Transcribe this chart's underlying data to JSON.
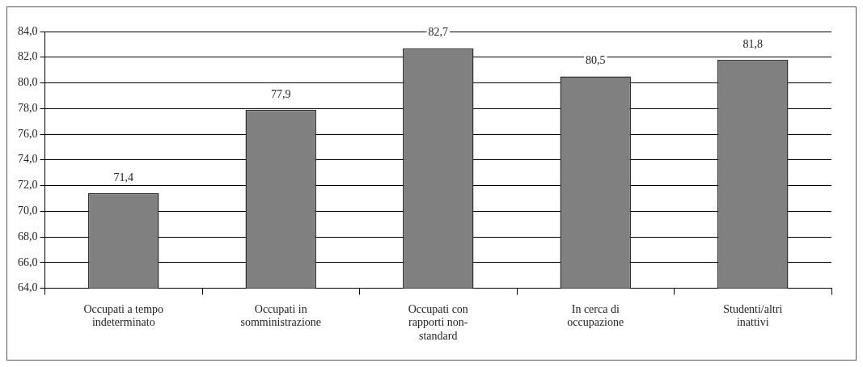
{
  "chart_data": {
    "type": "bar",
    "categories": [
      "Occupati a tempo indeterminato",
      "Occupati in somministrazione",
      "Occupati con rapporti non-standard",
      "In cerca di occupazione",
      "Studenti/altri inattivi"
    ],
    "values": [
      71.4,
      77.9,
      82.7,
      80.5,
      81.8
    ],
    "value_labels": [
      "71,4",
      "77,9",
      "82,7",
      "80,5",
      "81,8"
    ],
    "color": "#808080",
    "ylim": [
      64,
      84
    ],
    "yticks": [
      {
        "value": 64,
        "label": "64,0"
      },
      {
        "value": 66,
        "label": "66,0"
      },
      {
        "value": 68,
        "label": "68,0"
      },
      {
        "value": 70,
        "label": "70,0"
      },
      {
        "value": 72,
        "label": "72,0"
      },
      {
        "value": 74,
        "label": "74,0"
      },
      {
        "value": 76,
        "label": "76,0"
      },
      {
        "value": 78,
        "label": "78,0"
      },
      {
        "value": 80,
        "label": "80,0"
      },
      {
        "value": 82,
        "label": "82,0"
      },
      {
        "value": 84,
        "label": "84,0"
      }
    ],
    "grid": "y"
  }
}
